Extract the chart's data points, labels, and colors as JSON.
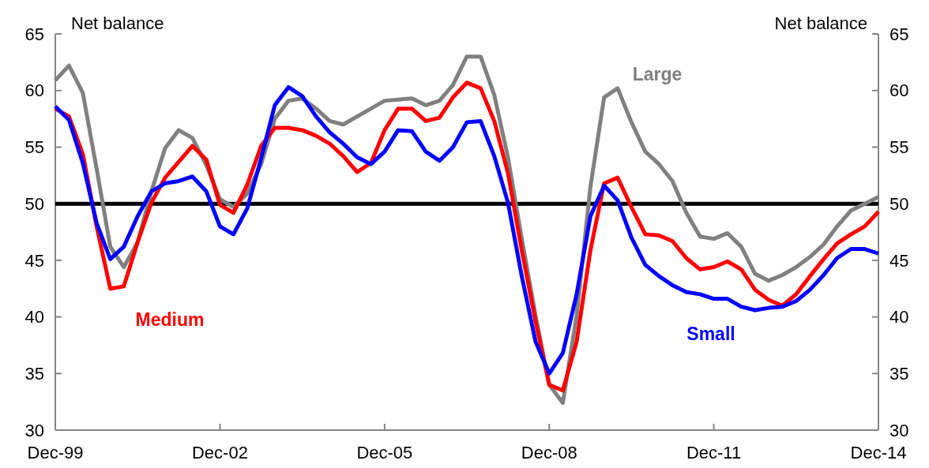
{
  "chart_data": {
    "type": "line",
    "ylabel": "Net balance",
    "y2label": "Net balance",
    "x": [
      "1999-12",
      "2000-03",
      "2000-06",
      "2000-09",
      "2000-12",
      "2001-03",
      "2001-06",
      "2001-09",
      "2001-12",
      "2002-03",
      "2002-06",
      "2002-09",
      "2002-12",
      "2003-03",
      "2003-06",
      "2003-09",
      "2003-12",
      "2004-03",
      "2004-06",
      "2004-09",
      "2004-12",
      "2005-03",
      "2005-06",
      "2005-09",
      "2005-12",
      "2006-03",
      "2006-06",
      "2006-09",
      "2006-12",
      "2007-03",
      "2007-06",
      "2007-09",
      "2007-12",
      "2008-03",
      "2008-06",
      "2008-09",
      "2008-12",
      "2009-03",
      "2009-06",
      "2009-09",
      "2009-12",
      "2010-03",
      "2010-06",
      "2010-09",
      "2010-12",
      "2011-03",
      "2011-06",
      "2011-09",
      "2011-12",
      "2012-03",
      "2012-06",
      "2012-09",
      "2012-12",
      "2013-03",
      "2013-06",
      "2013-09",
      "2013-12",
      "2014-03",
      "2014-06",
      "2014-09",
      "2014-12"
    ],
    "series": [
      {
        "name": "Large",
        "color": "#808080",
        "values": [
          60.9,
          62.2,
          59.8,
          53.1,
          46.2,
          44.4,
          46.6,
          51.1,
          54.9,
          56.5,
          55.8,
          53.4,
          50.4,
          49.7,
          50.9,
          53.5,
          57.5,
          59.1,
          59.3,
          58.4,
          57.3,
          57.0,
          57.7,
          58.4,
          59.1,
          59.2,
          59.3,
          58.7,
          59.1,
          60.5,
          63.0,
          63.0,
          59.6,
          54.1,
          46.9,
          40.1,
          34.0,
          32.4,
          40.1,
          51.5,
          59.4,
          60.2,
          57.2,
          54.6,
          53.5,
          52.0,
          49.2,
          47.1,
          46.9,
          47.4,
          46.2,
          43.8,
          43.2,
          43.7,
          44.4,
          45.3,
          46.4,
          48.0,
          49.4,
          50.0,
          50.6
        ]
      },
      {
        "name": "Medium",
        "color": "#ff0000",
        "values": [
          58.4,
          57.7,
          54.4,
          48.0,
          42.5,
          42.7,
          46.6,
          50.1,
          52.3,
          53.7,
          55.1,
          53.9,
          49.9,
          49.2,
          51.7,
          55.1,
          56.7,
          56.7,
          56.5,
          56.0,
          55.3,
          54.2,
          52.8,
          53.6,
          56.5,
          58.4,
          58.4,
          57.3,
          57.6,
          59.4,
          60.7,
          60.2,
          57.3,
          52.7,
          45.9,
          39.6,
          34.0,
          33.5,
          37.8,
          45.9,
          51.8,
          52.3,
          49.7,
          47.3,
          47.2,
          46.7,
          45.2,
          44.2,
          44.4,
          44.9,
          44.2,
          42.4,
          41.5,
          41.0,
          42.0,
          43.6,
          45.1,
          46.5,
          47.3,
          48.0,
          49.3
        ]
      },
      {
        "name": "Small",
        "color": "#0000ff",
        "values": [
          58.6,
          57.4,
          53.6,
          48.3,
          45.1,
          46.2,
          48.9,
          51.1,
          51.8,
          52.0,
          52.4,
          51.1,
          48.0,
          47.3,
          49.6,
          54.0,
          58.7,
          60.3,
          59.5,
          57.7,
          56.3,
          55.3,
          54.1,
          53.5,
          54.6,
          56.5,
          56.4,
          54.6,
          53.8,
          55.0,
          57.2,
          57.3,
          54.2,
          50.1,
          43.6,
          37.8,
          35.0,
          36.8,
          42.0,
          48.9,
          51.6,
          50.3,
          47.0,
          44.6,
          43.6,
          42.8,
          42.2,
          42.0,
          41.6,
          41.6,
          40.9,
          40.6,
          40.8,
          40.9,
          41.4,
          42.4,
          43.7,
          45.2,
          46.0,
          46.0,
          45.6
        ]
      }
    ],
    "xlim": [
      "1999-12",
      "2014-12"
    ],
    "xticks": [
      {
        "value": "1999-12",
        "label": "Dec-99"
      },
      {
        "value": "2002-12",
        "label": "Dec-02"
      },
      {
        "value": "2005-12",
        "label": "Dec-05"
      },
      {
        "value": "2008-12",
        "label": "Dec-08"
      },
      {
        "value": "2011-12",
        "label": "Dec-11"
      },
      {
        "value": "2014-12",
        "label": "Dec-14"
      }
    ],
    "ylim": [
      30,
      65
    ],
    "yticks": [
      30,
      35,
      40,
      45,
      50,
      55,
      60,
      65
    ],
    "y2lim": [
      30,
      65
    ],
    "y2ticks": [
      30,
      35,
      40,
      45,
      50,
      55,
      60,
      65
    ],
    "ref_lines": [
      {
        "axis": "y",
        "value": 50,
        "color": "#000000"
      }
    ],
    "grid": false
  }
}
